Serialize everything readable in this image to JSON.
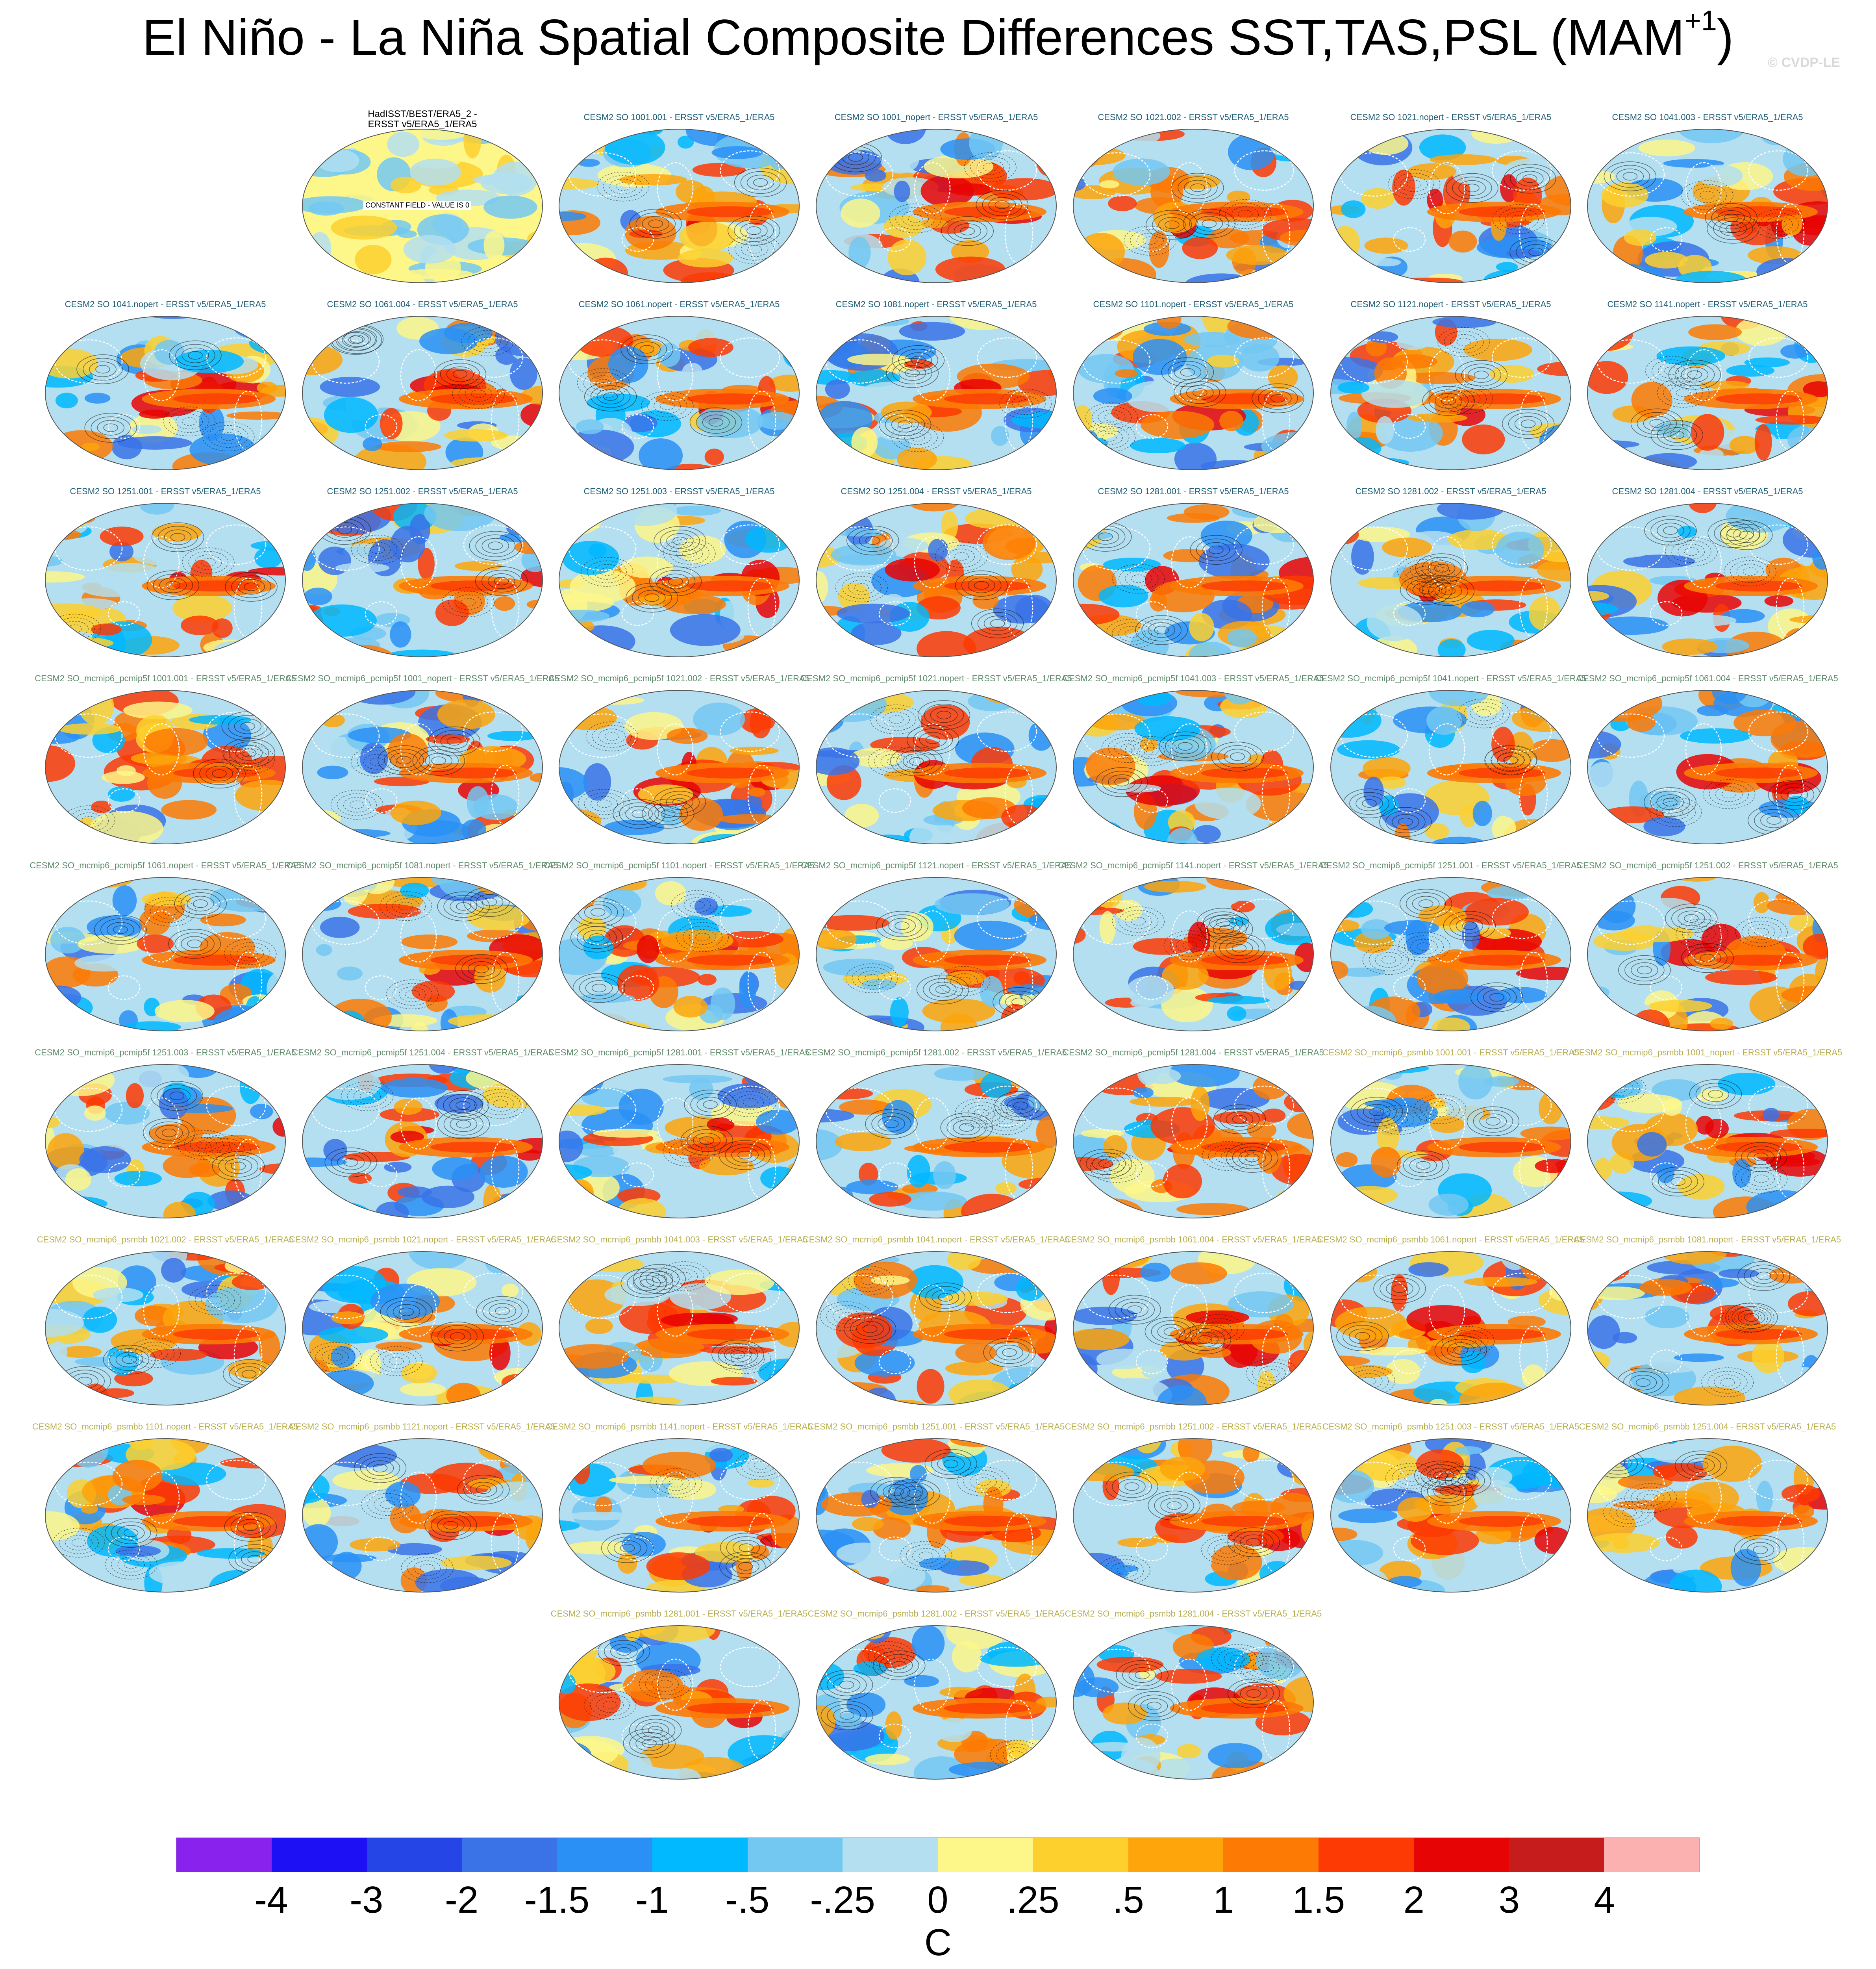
{
  "title": {
    "main": "El Niño - La Niña Spatial Composite Differences SST,TAS,PSL (MAM",
    "sup": "+1",
    "end": ")"
  },
  "watermark": "© CVDP-LE",
  "obs_panel": {
    "title_line1": "HadISST/BEST/ERA5_2 -",
    "title_line2": "ERSST v5/ERA5_1/ERA5",
    "note": "CONSTANT FIELD - VALUE IS 0"
  },
  "title_colors": {
    "obs": "#000000",
    "cesm2_so": "#1f5f78",
    "pcmip5f": "#5e8a6a",
    "psmbb": "#b7ae4e"
  },
  "rows": [
    [
      "CESM2 SO 1001.001 - ERSST v5/ERA5_1/ERA5",
      "CESM2 SO 1001_nopert - ERSST v5/ERA5_1/ERA5",
      "CESM2 SO 1021.002 - ERSST v5/ERA5_1/ERA5",
      "CESM2 SO 1021.nopert - ERSST v5/ERA5_1/ERA5",
      "CESM2 SO 1041.003 - ERSST v5/ERA5_1/ERA5"
    ],
    [
      "CESM2 SO 1041.nopert - ERSST v5/ERA5_1/ERA5",
      "CESM2 SO 1061.004 - ERSST v5/ERA5_1/ERA5",
      "CESM2 SO 1061.nopert - ERSST v5/ERA5_1/ERA5",
      "CESM2 SO 1081.nopert - ERSST v5/ERA5_1/ERA5",
      "CESM2 SO 1101.nopert - ERSST v5/ERA5_1/ERA5",
      "CESM2 SO 1121.nopert - ERSST v5/ERA5_1/ERA5",
      "CESM2 SO 1141.nopert - ERSST v5/ERA5_1/ERA5"
    ],
    [
      "CESM2 SO 1251.001 - ERSST v5/ERA5_1/ERA5",
      "CESM2 SO 1251.002 - ERSST v5/ERA5_1/ERA5",
      "CESM2 SO 1251.003 - ERSST v5/ERA5_1/ERA5",
      "CESM2 SO 1251.004 - ERSST v5/ERA5_1/ERA5",
      "CESM2 SO 1281.001 - ERSST v5/ERA5_1/ERA5",
      "CESM2 SO 1281.002 - ERSST v5/ERA5_1/ERA5",
      "CESM2 SO 1281.004 - ERSST v5/ERA5_1/ERA5"
    ],
    [
      "CESM2 SO_mcmip6_pcmip5f 1001.001 - ERSST v5/ERA5_1/ERA5",
      "CESM2 SO_mcmip6_pcmip5f 1001_nopert - ERSST v5/ERA5_1/ERA5",
      "CESM2 SO_mcmip6_pcmip5f 1021.002 - ERSST v5/ERA5_1/ERA5",
      "CESM2 SO_mcmip6_pcmip5f 1021.nopert - ERSST v5/ERA5_1/ERA5",
      "CESM2 SO_mcmip6_pcmip5f 1041.003 - ERSST v5/ERA5_1/ERA5",
      "CESM2 SO_mcmip6_pcmip5f 1041.nopert - ERSST v5/ERA5_1/ERA5",
      "CESM2 SO_mcmip6_pcmip5f 1061.004 - ERSST v5/ERA5_1/ERA5"
    ],
    [
      "CESM2 SO_mcmip6_pcmip5f 1061.nopert - ERSST v5/ERA5_1/ERA5",
      "CESM2 SO_mcmip6_pcmip5f 1081.nopert - ERSST v5/ERA5_1/ERA5",
      "CESM2 SO_mcmip6_pcmip5f 1101.nopert - ERSST v5/ERA5_1/ERA5",
      "CESM2 SO_mcmip6_pcmip5f 1121.nopert - ERSST v5/ERA5_1/ERA5",
      "CESM2 SO_mcmip6_pcmip5f 1141.nopert - ERSST v5/ERA5_1/ERA5",
      "CESM2 SO_mcmip6_pcmip5f 1251.001 - ERSST v5/ERA5_1/ERA5",
      "CESM2 SO_mcmip6_pcmip5f 1251.002 - ERSST v5/ERA5_1/ERA5"
    ],
    [
      "CESM2 SO_mcmip6_pcmip5f 1251.003 - ERSST v5/ERA5_1/ERA5",
      "CESM2 SO_mcmip6_pcmip5f 1251.004 - ERSST v5/ERA5_1/ERA5",
      "CESM2 SO_mcmip6_pcmip5f 1281.001 - ERSST v5/ERA5_1/ERA5",
      "CESM2 SO_mcmip6_pcmip5f 1281.002 - ERSST v5/ERA5_1/ERA5",
      "CESM2 SO_mcmip6_pcmip5f 1281.004 - ERSST v5/ERA5_1/ERA5",
      "CESM2 SO_mcmip6_psmbb 1001.001 - ERSST v5/ERA5_1/ERA5",
      "CESM2 SO_mcmip6_psmbb 1001_nopert - ERSST v5/ERA5_1/ERA5"
    ],
    [
      "CESM2 SO_mcmip6_psmbb 1021.002 - ERSST v5/ERA5_1/ERA5",
      "CESM2 SO_mcmip6_psmbb 1021.nopert - ERSST v5/ERA5_1/ERA5",
      "CESM2 SO_mcmip6_psmbb 1041.003 - ERSST v5/ERA5_1/ERA5",
      "CESM2 SO_mcmip6_psmbb 1041.nopert - ERSST v5/ERA5_1/ERA5",
      "CESM2 SO_mcmip6_psmbb 1061.004 - ERSST v5/ERA5_1/ERA5",
      "CESM2 SO_mcmip6_psmbb 1061.nopert - ERSST v5/ERA5_1/ERA5",
      "CESM2 SO_mcmip6_psmbb 1081.nopert - ERSST v5/ERA5_1/ERA5"
    ],
    [
      "CESM2 SO_mcmip6_psmbb 1101.nopert - ERSST v5/ERA5_1/ERA5",
      "CESM2 SO_mcmip6_psmbb 1121.nopert - ERSST v5/ERA5_1/ERA5",
      "CESM2 SO_mcmip6_psmbb 1141.nopert - ERSST v5/ERA5_1/ERA5",
      "CESM2 SO_mcmip6_psmbb 1251.001 - ERSST v5/ERA5_1/ERA5",
      "CESM2 SO_mcmip6_psmbb 1251.002 - ERSST v5/ERA5_1/ERA5",
      "CESM2 SO_mcmip6_psmbb 1251.003 - ERSST v5/ERA5_1/ERA5",
      "CESM2 SO_mcmip6_psmbb 1251.004 - ERSST v5/ERA5_1/ERA5"
    ],
    [
      "CESM2 SO_mcmip6_psmbb 1281.001 - ERSST v5/ERA5_1/ERA5",
      "CESM2 SO_mcmip6_psmbb 1281.002 - ERSST v5/ERA5_1/ERA5",
      "CESM2 SO_mcmip6_psmbb 1281.004 - ERSST v5/ERA5_1/ERA5"
    ]
  ],
  "colorbar": {
    "colors": [
      "#8a22ee",
      "#1e10f5",
      "#2645e6",
      "#3a73e8",
      "#2a90f6",
      "#00b9ff",
      "#73c8f2",
      "#b3dff0",
      "#fdf78a",
      "#fdd02e",
      "#fda50a",
      "#fd7a04",
      "#fd3a04",
      "#e70404",
      "#c61c1c",
      "#fcb1b1"
    ],
    "labels": [
      "-4",
      "-3",
      "-2",
      "-1.5",
      "-1",
      "-.5",
      "-.25",
      "0",
      ".25",
      ".5",
      "1",
      "1.5",
      "2",
      "3",
      "4"
    ],
    "units": "C"
  }
}
